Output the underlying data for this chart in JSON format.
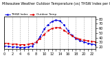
{
  "title": "Milwaukee Weather Outdoor Temperature (vs) THSW Index per Hour (Last 24 Hours)",
  "bg_color": "#ffffff",
  "plot_bg_color": "#ffffff",
  "grid_color": "#aaaaaa",
  "hours": [
    0,
    1,
    2,
    3,
    4,
    5,
    6,
    7,
    8,
    9,
    10,
    11,
    12,
    13,
    14,
    15,
    16,
    17,
    18,
    19,
    20,
    21,
    22,
    23
  ],
  "temp": [
    28,
    27,
    26,
    26,
    25,
    25,
    26,
    27,
    31,
    38,
    47,
    55,
    60,
    62,
    61,
    56,
    50,
    44,
    40,
    37,
    35,
    33,
    32,
    31
  ],
  "thsw": [
    22,
    21,
    20,
    20,
    19,
    19,
    20,
    22,
    30,
    42,
    58,
    68,
    75,
    78,
    76,
    68,
    55,
    45,
    38,
    34,
    31,
    28,
    26,
    25
  ],
  "temp_color": "#dd0000",
  "thsw_color": "#0000dd",
  "ylim_min": 15,
  "ylim_max": 85,
  "xlim_min": 0,
  "xlim_max": 23,
  "linewidth": 0.8,
  "markersize": 2.0,
  "right_yticks": [
    80,
    70,
    60,
    50,
    40,
    30,
    20
  ],
  "xtick_labels": [
    "0",
    "",
    "2",
    "",
    "4",
    "",
    "6",
    "",
    "8",
    "",
    "10",
    "",
    "12",
    "",
    "14",
    "",
    "16",
    "",
    "18",
    "",
    "20",
    "",
    "22",
    ""
  ],
  "legend_thsw": "THSW Index",
  "legend_temp": "Outdoor Temp",
  "title_fontsize": 3.5,
  "tick_fontsize": 3.5,
  "legend_fontsize": 3.0
}
